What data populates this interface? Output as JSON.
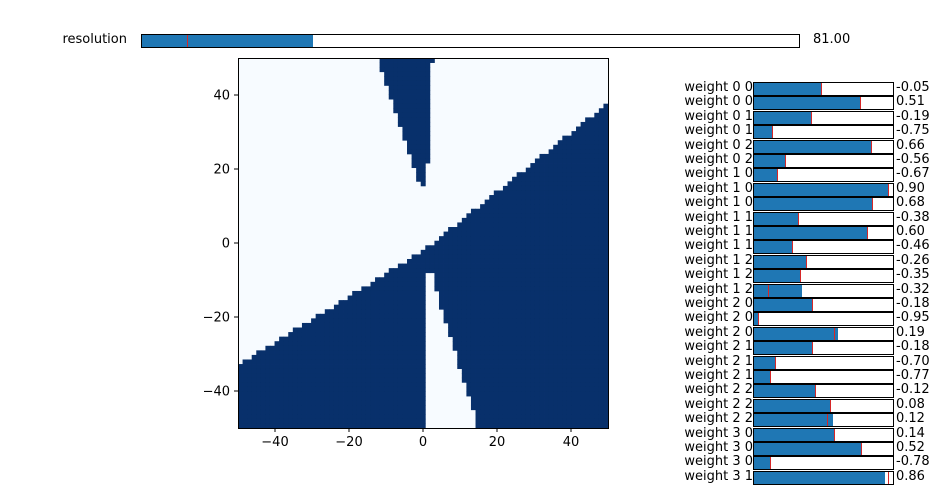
{
  "resolution": {
    "label": "resolution",
    "value": 81,
    "display": "81.00",
    "min": 0,
    "max": 1000,
    "init": 100
  },
  "heatmap": {
    "xlim": [
      -50,
      50
    ],
    "ylim": [
      -50,
      50
    ],
    "xticks": [
      "−40",
      "−20",
      "0",
      "20",
      "40"
    ],
    "xtick_values": [
      -40,
      -20,
      0,
      20,
      40
    ],
    "yticks": [
      "−40",
      "−20",
      "0",
      "20",
      "40"
    ],
    "ytick_values": [
      -40,
      -20,
      0,
      20,
      40
    ],
    "colors": {
      "low": "#f7fbff",
      "high": "#08306b"
    }
  },
  "weights": {
    "min": -1,
    "max": 1,
    "items": [
      {
        "label": "weight 0 0",
        "value": -0.05,
        "display": "-0.05",
        "init": -0.05
      },
      {
        "label": "weight 0 0",
        "value": 0.51,
        "display": "0.51",
        "init": 0.51
      },
      {
        "label": "weight 0 1",
        "value": -0.19,
        "display": "-0.19",
        "init": -0.19
      },
      {
        "label": "weight 0 1",
        "value": -0.75,
        "display": "-0.75",
        "init": -0.75
      },
      {
        "label": "weight 0 2",
        "value": 0.66,
        "display": "0.66",
        "init": 0.66
      },
      {
        "label": "weight 0 2",
        "value": -0.56,
        "display": "-0.56",
        "init": -0.56
      },
      {
        "label": "weight 1 0",
        "value": -0.67,
        "display": "-0.67",
        "init": -0.67
      },
      {
        "label": "weight 1 0",
        "value": 0.9,
        "display": "0.90",
        "init": 0.9
      },
      {
        "label": "weight 1 0",
        "value": 0.68,
        "display": "0.68",
        "init": 0.68
      },
      {
        "label": "weight 1 1",
        "value": -0.38,
        "display": "-0.38",
        "init": -0.38
      },
      {
        "label": "weight 1 1",
        "value": 0.6,
        "display": "0.60",
        "init": 0.6
      },
      {
        "label": "weight 1 1",
        "value": -0.46,
        "display": "-0.46",
        "init": -0.46
      },
      {
        "label": "weight 1 2",
        "value": -0.26,
        "display": "-0.26",
        "init": -0.26
      },
      {
        "label": "weight 1 2",
        "value": -0.35,
        "display": "-0.35",
        "init": -0.35
      },
      {
        "label": "weight 1 2",
        "value": -0.32,
        "display": "-0.32",
        "init": -0.8
      },
      {
        "label": "weight 2 0",
        "value": -0.18,
        "display": "-0.18",
        "init": -0.18
      },
      {
        "label": "weight 2 0",
        "value": -0.95,
        "display": "-0.95",
        "init": -0.95
      },
      {
        "label": "weight 2 0",
        "value": 0.19,
        "display": "0.19",
        "init": 0.14
      },
      {
        "label": "weight 2 1",
        "value": -0.18,
        "display": "-0.18",
        "init": -0.18
      },
      {
        "label": "weight 2 1",
        "value": -0.7,
        "display": "-0.70",
        "init": -0.7
      },
      {
        "label": "weight 2 1",
        "value": -0.77,
        "display": "-0.77",
        "init": -0.77
      },
      {
        "label": "weight 2 2",
        "value": -0.12,
        "display": "-0.12",
        "init": -0.14
      },
      {
        "label": "weight 2 2",
        "value": 0.08,
        "display": "0.08",
        "init": 0.08
      },
      {
        "label": "weight 2 2",
        "value": 0.12,
        "display": "0.12",
        "init": 0.04
      },
      {
        "label": "weight 3 0",
        "value": 0.14,
        "display": "0.14",
        "init": 0.14
      },
      {
        "label": "weight 3 0",
        "value": 0.52,
        "display": "0.52",
        "init": 0.52
      },
      {
        "label": "weight 3 0",
        "value": -0.78,
        "display": "-0.78",
        "init": -0.78
      },
      {
        "label": "weight 3 1",
        "value": 0.86,
        "display": "0.86",
        "init": 0.9
      }
    ]
  }
}
